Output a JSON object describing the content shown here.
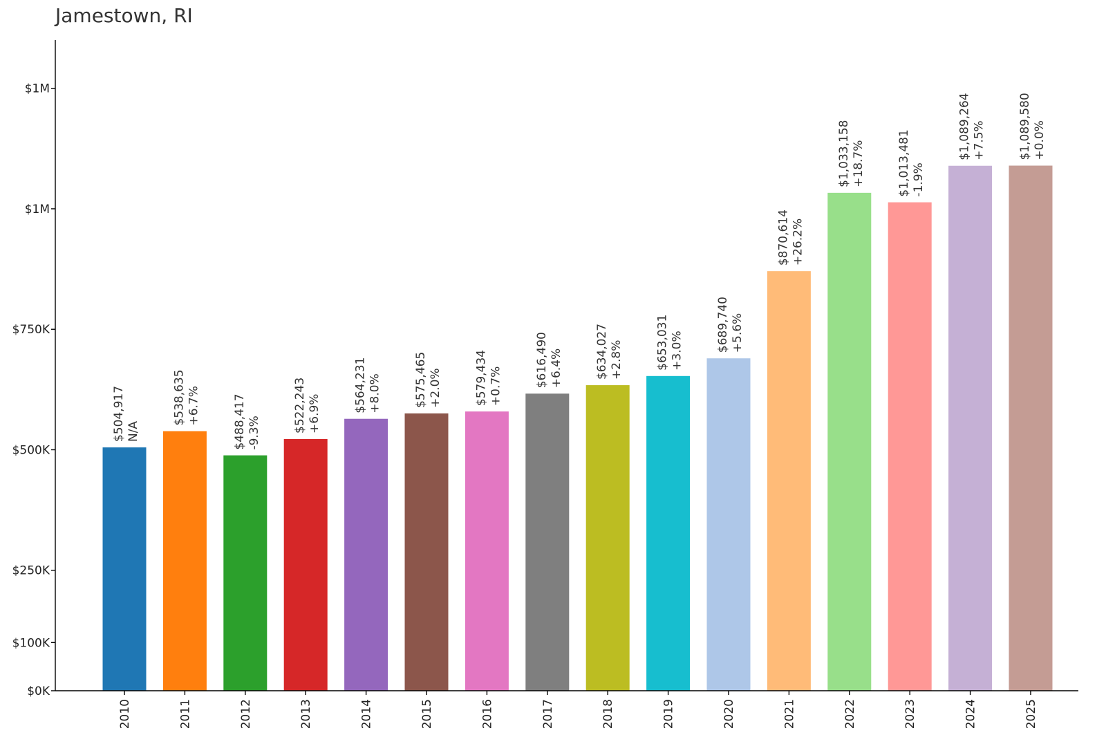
{
  "chart_data": {
    "type": "bar",
    "title": "Jamestown, RI",
    "xlabel": "",
    "ylabel": "",
    "categories": [
      "2010",
      "2011",
      "2012",
      "2013",
      "2014",
      "2015",
      "2016",
      "2017",
      "2018",
      "2019",
      "2020",
      "2021",
      "2022",
      "2023",
      "2024",
      "2025"
    ],
    "values": [
      504917,
      538635,
      488417,
      522243,
      564231,
      575465,
      579434,
      616490,
      634027,
      653031,
      689740,
      870614,
      1033158,
      1013481,
      1089264,
      1089580
    ],
    "value_labels": [
      "$504,917",
      "$538,635",
      "$488,417",
      "$522,243",
      "$564,231",
      "$575,465",
      "$579,434",
      "$616,490",
      "$634,027",
      "$653,031",
      "$689,740",
      "$870,614",
      "$1,033,158",
      "$1,013,481",
      "$1,089,264",
      "$1,089,580"
    ],
    "change_labels": [
      "N/A",
      "+6.7%",
      "-9.3%",
      "+6.9%",
      "+8.0%",
      "+2.0%",
      "+0.7%",
      "+6.4%",
      "+2.8%",
      "+3.0%",
      "+5.6%",
      "+26.2%",
      "+18.7%",
      "-1.9%",
      "+7.5%",
      "+0.0%"
    ],
    "colors": [
      "#1f77b4",
      "#ff7f0e",
      "#2ca02c",
      "#d62728",
      "#9467bd",
      "#8c564b",
      "#e377c2",
      "#7f7f7f",
      "#bcbd22",
      "#17becf",
      "#aec7e8",
      "#ffbb78",
      "#98df8a",
      "#ff9896",
      "#c5b0d5",
      "#c49c94"
    ],
    "yticks": [
      {
        "value": 0,
        "label": "$0K"
      },
      {
        "value": 100000,
        "label": "$100K"
      },
      {
        "value": 250000,
        "label": "$250K"
      },
      {
        "value": 500000,
        "label": "$500K"
      },
      {
        "value": 750000,
        "label": "$750K"
      },
      {
        "value": 1000000,
        "label": "$1M"
      },
      {
        "value": 1250000,
        "label": "$1M"
      }
    ],
    "ylim": [
      0,
      1350000
    ],
    "grid": false,
    "legend": "none"
  }
}
